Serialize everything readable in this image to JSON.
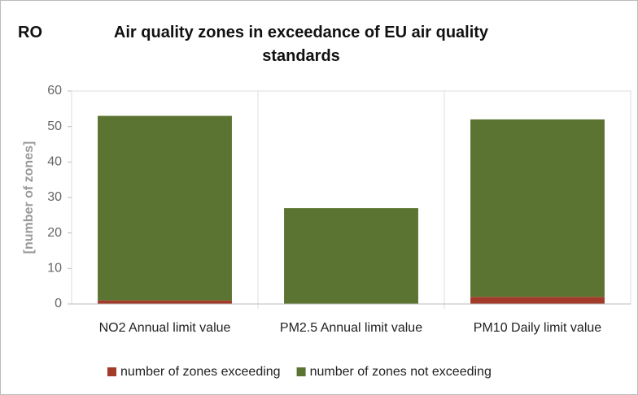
{
  "chart_data": {
    "type": "stacked_bar",
    "label": "RO",
    "title": "Air quality zones in exceedance of EU air quality standards",
    "ylabel": "[number of zones]",
    "categories": [
      "NO2 Annual limit value",
      "PM2.5 Annual limit value",
      "PM10 Daily limit value"
    ],
    "series": [
      {
        "name": "number of zones exceeding",
        "color": "#a33b2a",
        "values": [
          1,
          0,
          2
        ]
      },
      {
        "name": "number of zones not exceeding",
        "color": "#5b7431",
        "values": [
          52,
          27,
          50
        ]
      }
    ],
    "ylim": [
      0,
      60
    ],
    "yticks": [
      0,
      10,
      20,
      30,
      40,
      50,
      60
    ],
    "legend": "bottom"
  }
}
